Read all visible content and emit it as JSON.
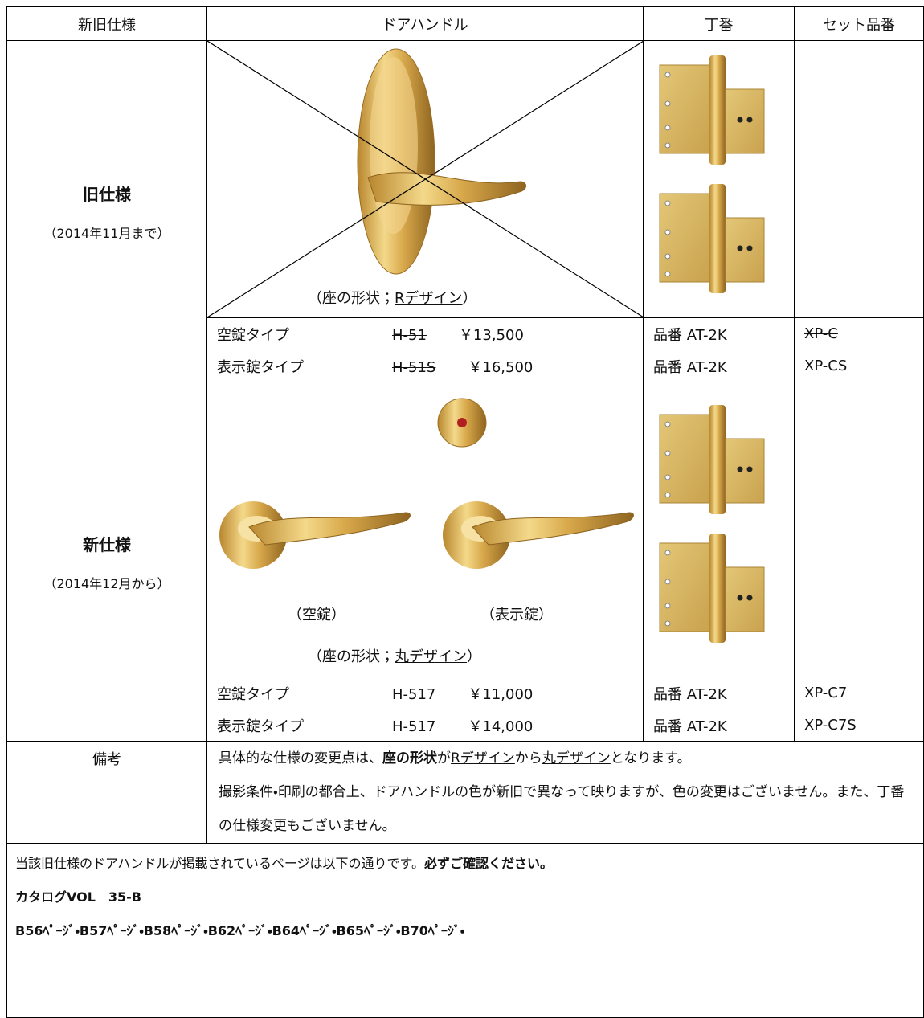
{
  "header": [
    "新旧仕様",
    "ドアハンドル",
    "丁番",
    "セット品番"
  ],
  "old": {
    "title": "旧仕様",
    "period": "（2014年11月まで）",
    "shape_caption": [
      "（座の形状；",
      "Rデザイン",
      "）"
    ],
    "rows": [
      {
        "type": "空錠タイプ",
        "model": "H-51",
        "price": "￥13,500",
        "hinge": "品番 AT-2K",
        "set": "XP-C"
      },
      {
        "type": "表示錠タイプ",
        "model": "H-51S",
        "price": "￥16,500",
        "hinge": "品番 AT-2K",
        "set": "XP-CS"
      }
    ]
  },
  "new": {
    "title": "新仕様",
    "period": "（2014年12月から）",
    "captions": [
      "（空錠）",
      "（表示錠）"
    ],
    "shape_caption": [
      "（座の形状；",
      "丸デザイン",
      "）"
    ],
    "rows": [
      {
        "type": "空錠タイプ",
        "model": "H-517",
        "price": "￥11,000",
        "hinge": "品番 AT-2K",
        "set": "XP-C7"
      },
      {
        "type": "表示錠タイプ",
        "model": "H-517",
        "price": "￥14,000",
        "hinge": "品番 AT-2K",
        "set": "XP-C7S"
      }
    ]
  },
  "remarks": {
    "label": "備考",
    "lines": [
      [
        "具体的な仕様の変更点は、",
        "座の形状",
        "が",
        "Rデザイン",
        "から",
        "丸デザイン",
        "となります。"
      ],
      "撮影条件・印刷の都合上、ドアハンドルの色が新旧で異なって映りますが、色の変更はございません。また、丁番の仕様変更もございません。"
    ]
  },
  "notes": [
    [
      "当該旧仕様のドアハンドルが掲載されているページは以下の通りです。",
      "必ずご確認ください。"
    ],
    "カタログVOL　35-B",
    "B56ﾍﾟｰｼﾞ・B57ﾍﾟｰｼﾞ・B58ﾍﾟｰｼﾞ・B62ﾍﾟｰｼﾞ・B64ﾍﾟｰｼﾞ・B65ﾍﾟｰｼﾞ・B70ﾍﾟｰｼﾞ・"
  ]
}
